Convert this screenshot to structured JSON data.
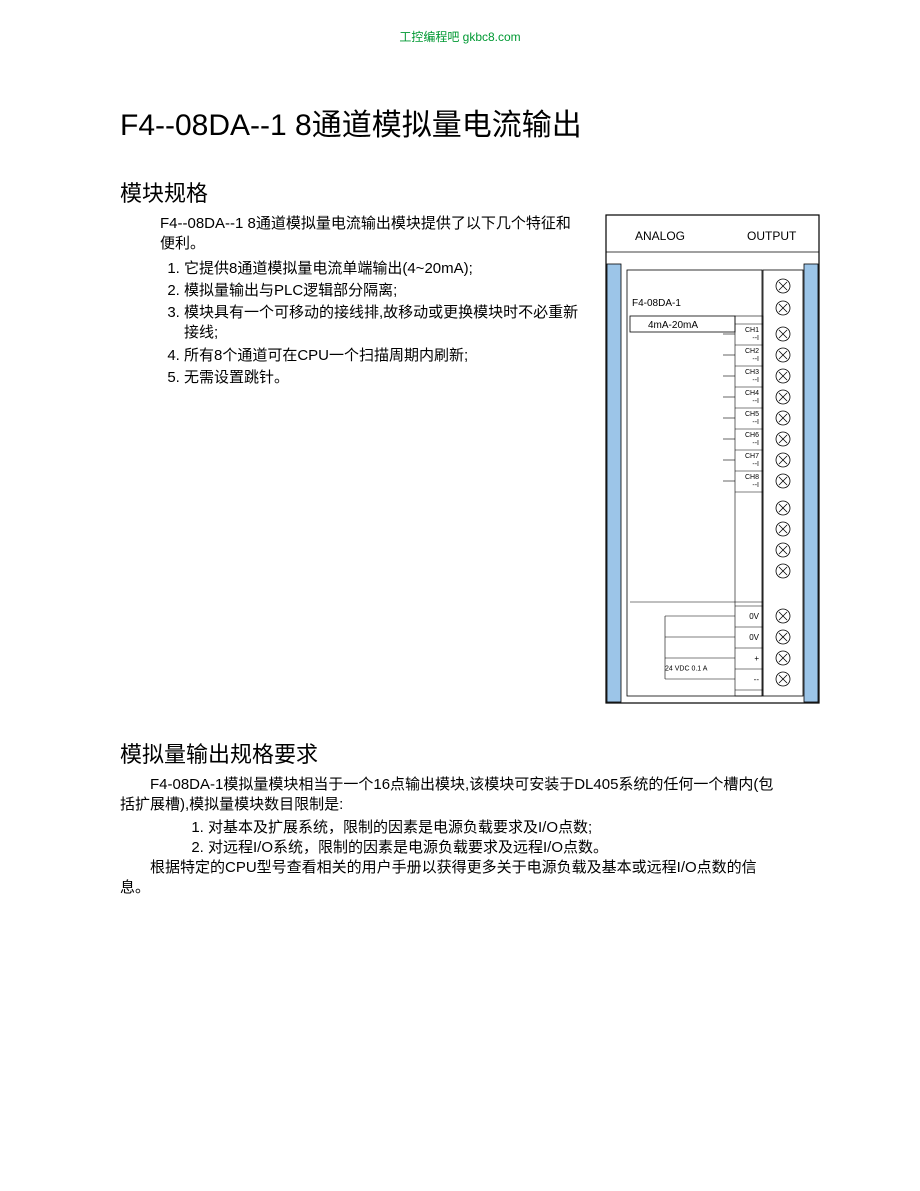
{
  "header_link": "工控编程吧 gkbc8.com",
  "title": "F4--08DA--1 8通道模拟量电流输出",
  "section1": {
    "heading": "模块规格",
    "intro": "F4--08DA--1 8通道模拟量电流输出模块提供了以下几个特征和便利。",
    "items": [
      "它提供8通道模拟量电流单端输出(4~20mA);",
      "模拟量输出与PLC逻辑部分隔离;",
      "模块具有一个可移动的接线排,故移动或更换模块时不必重新接线;",
      "所有8个通道可在CPU一个扫描周期内刷新;",
      "无需设置跳针。"
    ]
  },
  "diagram": {
    "top_left": "ANALOG",
    "top_right": "OUTPUT",
    "model": "F4-08DA-1",
    "range": "4mA-20mA",
    "channels": [
      "CH1",
      "CH2",
      "CH3",
      "CH4",
      "CH5",
      "CH6",
      "CH7",
      "CH8"
    ],
    "sub": "--I",
    "power": {
      "zero1": "0V",
      "zero2": "0V",
      "plus": "+",
      "vdc": "24 VDC 0.1 A",
      "minus": "--"
    },
    "colors": {
      "outline": "#000000",
      "side": "#9cc5e8",
      "text": "#000000",
      "screw_stroke": "#000000",
      "screw_fill": "#ffffff"
    }
  },
  "section2": {
    "heading": "模拟量输出规格要求",
    "p1": "F4-08DA-1模拟量模块相当于一个16点输出模块,该模块可安装于DL405系统的任何一个槽内(包括扩展槽),模拟量模块数目限制是:",
    "items": [
      "对基本及扩展系统，限制的因素是电源负载要求及I/O点数;",
      "对远程I/O系统，限制的因素是电源负载要求及远程I/O点数。"
    ],
    "p2": "根据特定的CPU型号查看相关的用户手册以获得更多关于电源负载及基本或远程I/O点数的信息。"
  }
}
